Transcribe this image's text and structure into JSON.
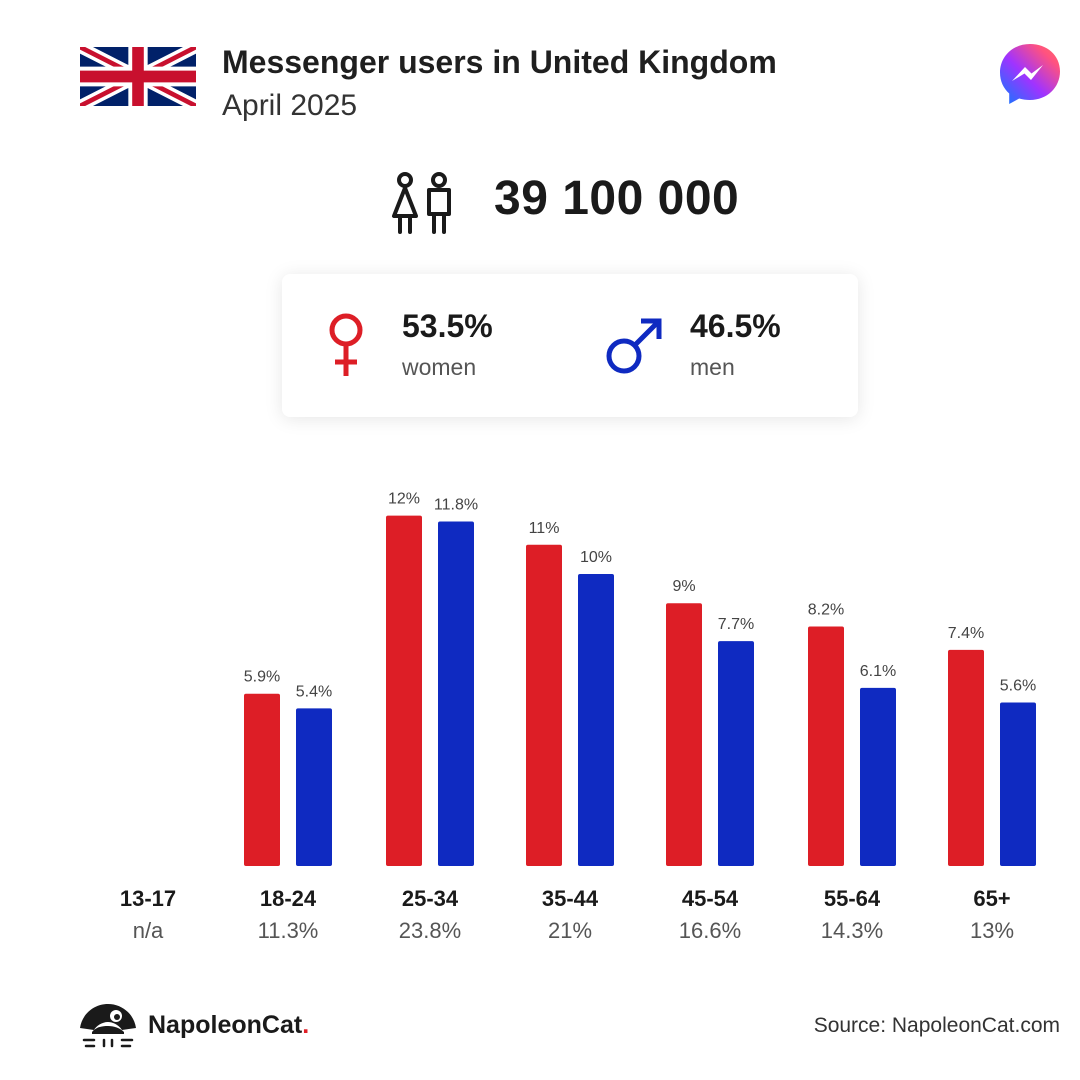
{
  "header": {
    "title": "Messenger users in United Kingdom",
    "subtitle": "April 2025",
    "flag_icon": "uk-flag-icon",
    "app_icon": "messenger-logo-icon"
  },
  "total": {
    "value": "39 100 000",
    "icon": "people-icon"
  },
  "gender": {
    "women": {
      "value": "53.5%",
      "label": "women",
      "icon": "female-symbol-icon"
    },
    "men": {
      "value": "46.5%",
      "label": "men",
      "icon": "male-symbol-icon"
    }
  },
  "colors": {
    "women": "#dd1e26",
    "men": "#0f2ac1"
  },
  "chart_data": {
    "type": "bar",
    "categories": [
      "13-17",
      "18-24",
      "25-34",
      "35-44",
      "45-54",
      "55-64",
      "65+"
    ],
    "category_shares": [
      "n/a",
      "11.3%",
      "23.8%",
      "21%",
      "16.6%",
      "14.3%",
      "13%"
    ],
    "series": [
      {
        "key": "women",
        "values": [
          null,
          5.9,
          12,
          11,
          9,
          8.2,
          7.4
        ],
        "labels": [
          "",
          "5.9%",
          "12%",
          "11%",
          "9%",
          "8.2%",
          "7.4%"
        ]
      },
      {
        "key": "men",
        "values": [
          null,
          5.4,
          11.8,
          10,
          7.7,
          6.1,
          5.6
        ],
        "labels": [
          "",
          "5.4%",
          "11.8%",
          "10%",
          "7.7%",
          "6.1%",
          "5.6%"
        ]
      }
    ],
    "ylim": [
      0,
      12
    ]
  },
  "footer": {
    "brand": "NapoleonCat",
    "brand_dot": ".",
    "logo_icon": "napoleoncat-logo-icon",
    "source": "Source: NapoleonCat.com"
  }
}
